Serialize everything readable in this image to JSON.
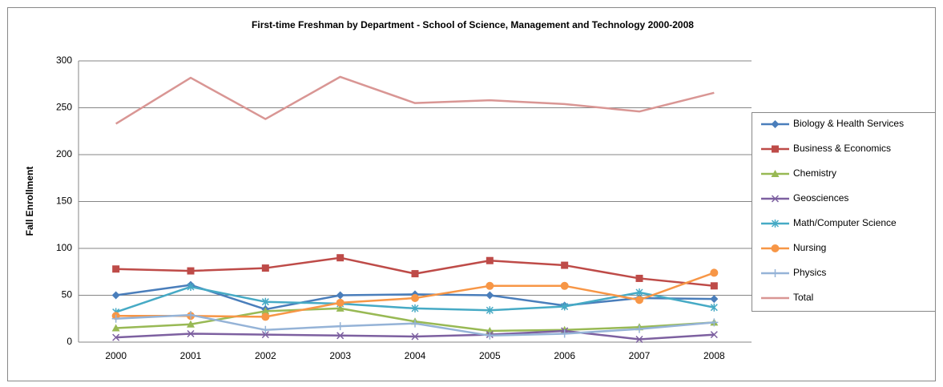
{
  "chart_data": {
    "type": "line",
    "title": "First-time Freshman by Department - School of Science, Management and Technology  2000-2008",
    "y_label": "Fall Enrollment",
    "categories": [
      "2000",
      "2001",
      "2002",
      "2003",
      "2004",
      "2005",
      "2006",
      "2007",
      "2008"
    ],
    "ylim": [
      0,
      300
    ],
    "yticks": [
      0,
      50,
      100,
      150,
      200,
      250,
      300
    ],
    "grid": true,
    "legend": "right",
    "series": [
      {
        "name": "Biology & Health Services",
        "color": "#4a7ebb",
        "marker": "diamond",
        "values": [
          50,
          61,
          35,
          50,
          51,
          50,
          39,
          47,
          46
        ]
      },
      {
        "name": "Business & Economics",
        "color": "#be4b48",
        "marker": "square",
        "values": [
          78,
          76,
          79,
          90,
          73,
          87,
          82,
          68,
          60
        ]
      },
      {
        "name": "Chemistry",
        "color": "#98b954",
        "marker": "triangle",
        "values": [
          15,
          19,
          33,
          36,
          22,
          12,
          13,
          16,
          21
        ]
      },
      {
        "name": "Geosciences",
        "color": "#7d60a0",
        "marker": "x",
        "values": [
          5,
          9,
          8,
          7,
          6,
          8,
          12,
          3,
          8
        ]
      },
      {
        "name": "Math/Computer Science",
        "color": "#46aac5",
        "marker": "star",
        "values": [
          32,
          59,
          43,
          41,
          36,
          34,
          38,
          53,
          37
        ]
      },
      {
        "name": "Nursing",
        "color": "#f79646",
        "marker": "circle",
        "values": [
          28,
          28,
          27,
          42,
          47,
          60,
          60,
          45,
          74
        ]
      },
      {
        "name": "Physics",
        "color": "#95b3d7",
        "marker": "plus",
        "values": [
          25,
          29,
          13,
          17,
          20,
          7,
          9,
          14,
          21
        ]
      },
      {
        "name": "Total",
        "color": "#d99694",
        "marker": "none",
        "values": [
          233,
          282,
          238,
          283,
          255,
          258,
          254,
          246,
          266
        ]
      }
    ]
  }
}
